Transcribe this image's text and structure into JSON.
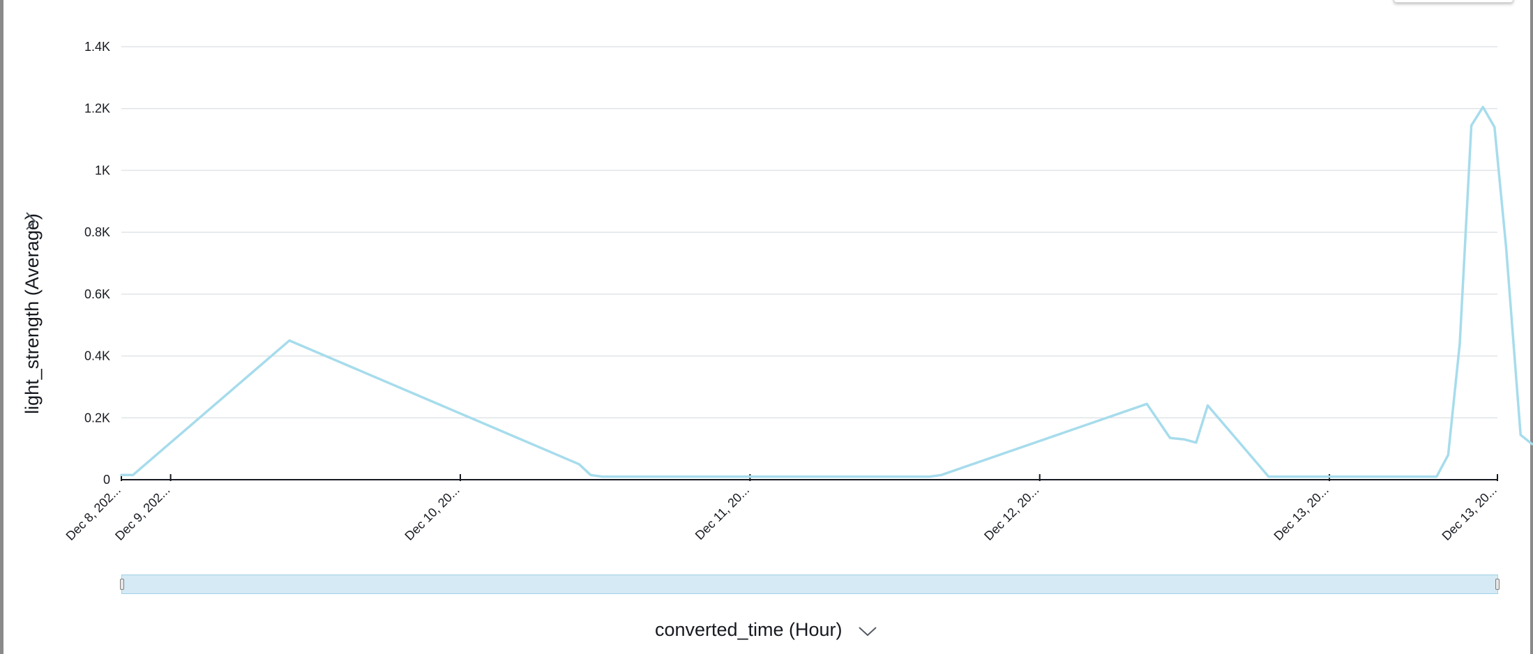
{
  "chart_data": {
    "type": "line",
    "title": "",
    "xlabel": "converted_time (Hour)",
    "ylabel": "light_strength (Average)",
    "ylim": [
      0,
      1400
    ],
    "y_ticks": [
      {
        "value": 0,
        "label": "0"
      },
      {
        "value": 200,
        "label": "0.2K"
      },
      {
        "value": 400,
        "label": "0.4K"
      },
      {
        "value": 600,
        "label": "0.6K"
      },
      {
        "value": 800,
        "label": "0.8K"
      },
      {
        "value": 1000,
        "label": "1K"
      },
      {
        "value": 1200,
        "label": "1.2K"
      },
      {
        "value": 1400,
        "label": "1.4K"
      }
    ],
    "x_ticks": [
      {
        "value": 0,
        "label": "Dec 8, 202..."
      },
      {
        "value": 0.17,
        "label": "Dec 9, 202..."
      },
      {
        "value": 1.17,
        "label": "Dec 10, 20..."
      },
      {
        "value": 2.17,
        "label": "Dec 11, 20..."
      },
      {
        "value": 3.17,
        "label": "Dec 12, 20..."
      },
      {
        "value": 4.17,
        "label": "Dec 13, 20..."
      },
      {
        "value": 4.75,
        "label": "Dec 13, 20..."
      }
    ],
    "grid": true,
    "legend": "none",
    "series": [
      {
        "color": "#a6dcec",
        "points": [
          [
            0.0,
            15
          ],
          [
            0.04,
            15
          ],
          [
            0.58,
            450
          ],
          [
            1.58,
            50
          ],
          [
            1.62,
            15
          ],
          [
            1.66,
            10
          ],
          [
            2.79,
            10
          ],
          [
            2.83,
            15
          ],
          [
            3.54,
            245
          ],
          [
            3.62,
            135
          ],
          [
            3.67,
            130
          ],
          [
            3.71,
            120
          ],
          [
            3.75,
            240
          ],
          [
            3.96,
            10
          ],
          [
            4.06,
            10
          ],
          [
            4.54,
            10
          ],
          [
            4.58,
            80
          ],
          [
            4.62,
            440
          ],
          [
            4.66,
            1145
          ],
          [
            4.7,
            1205
          ],
          [
            4.74,
            1140
          ],
          [
            4.78,
            750
          ],
          [
            4.83,
            145
          ],
          [
            4.87,
            115
          ]
        ]
      }
    ]
  },
  "controls": {
    "y_axis_chevron": "chevron-right-icon",
    "x_axis_chevron": "chevron-down-icon"
  }
}
